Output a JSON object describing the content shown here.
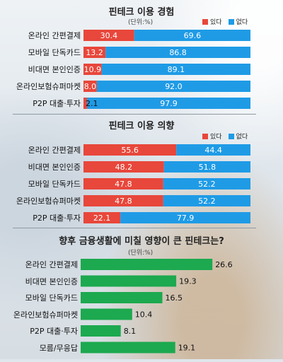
{
  "colors": {
    "red": "#e8473b",
    "blue": "#1f9be6",
    "green": "#1ca94f"
  },
  "chart_data": [
    {
      "type": "bar",
      "stacked": true,
      "title": "핀테크 이용 경험",
      "unit": "(단위:%)",
      "legend": [
        "있다",
        "없다"
      ],
      "categories": [
        "온라인 간편결제",
        "모바일 단독카드",
        "비대면 본인인증",
        "온라인보험슈퍼마켓",
        "P2P 대출·투자"
      ],
      "series": [
        {
          "name": "있다",
          "values": [
            30.4,
            13.2,
            10.9,
            8.0,
            2.1
          ]
        },
        {
          "name": "없다",
          "values": [
            69.6,
            86.8,
            89.1,
            92.0,
            97.9
          ]
        }
      ]
    },
    {
      "type": "bar",
      "stacked": true,
      "title": "핀테크 이용 의향",
      "legend": [
        "있다",
        "없다"
      ],
      "categories": [
        "온라인 간편결제",
        "비대면 본인인증",
        "모바일 단독카드",
        "온라인보험슈퍼마켓",
        "P2P 대출·투자"
      ],
      "series": [
        {
          "name": "있다",
          "values": [
            55.6,
            48.2,
            47.8,
            47.8,
            22.1
          ]
        },
        {
          "name": "없다",
          "values": [
            44.4,
            51.8,
            52.2,
            52.2,
            77.9
          ]
        }
      ]
    },
    {
      "type": "bar",
      "title": "향후 금융생활에 미칠 영향이 큰 핀테크는?",
      "unit": "(단위:%)",
      "categories": [
        "온라인 간편결제",
        "비대면 본인인증",
        "모바일 단독카드",
        "온라인보험슈퍼마켓",
        "P2P 대출·투자",
        "모름/무응답"
      ],
      "values": [
        26.6,
        19.3,
        16.5,
        10.4,
        8.1,
        19.1
      ],
      "xlim": [
        0,
        30
      ]
    }
  ]
}
